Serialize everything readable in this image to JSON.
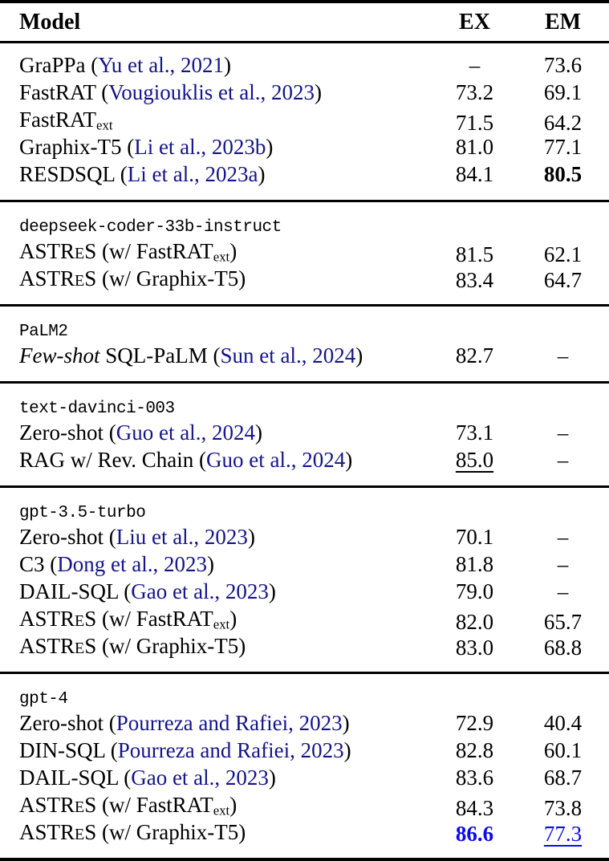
{
  "colors": {
    "text": "#000000",
    "cite": "#14148b",
    "highlight": "#0b0beb",
    "rule": "#000000",
    "background": "#ffffff"
  },
  "header": {
    "model": "Model",
    "ex": "EX",
    "em": "EM"
  },
  "sections": [
    {
      "rows": [
        {
          "model": [
            {
              "t": "GraPPa ("
            },
            {
              "t": "Yu et al., 2021",
              "s": "cite"
            },
            {
              "t": ")"
            }
          ],
          "ex": {
            "t": "–"
          },
          "em": {
            "t": "73.6"
          }
        },
        {
          "model": [
            {
              "t": "FastRAT ("
            },
            {
              "t": "Vougiouklis et al., 2023",
              "s": "cite"
            },
            {
              "t": ")"
            }
          ],
          "ex": {
            "t": "73.2"
          },
          "em": {
            "t": "69.1"
          }
        },
        {
          "model": [
            {
              "t": "FastRAT"
            },
            {
              "t": "ext",
              "s": "sub"
            }
          ],
          "ex": {
            "t": "71.5"
          },
          "em": {
            "t": "64.2"
          }
        },
        {
          "model": [
            {
              "t": "Graphix-T5 ("
            },
            {
              "t": "Li et al., 2023b",
              "s": "cite"
            },
            {
              "t": ")"
            }
          ],
          "ex": {
            "t": "81.0"
          },
          "em": {
            "t": "77.1"
          }
        },
        {
          "model": [
            {
              "t": "RESDSQL ("
            },
            {
              "t": "Li et al., 2023a",
              "s": "cite"
            },
            {
              "t": ")"
            }
          ],
          "ex": {
            "t": "84.1"
          },
          "em": {
            "t": "80.5",
            "s": "bold"
          }
        }
      ]
    },
    {
      "rows": [
        {
          "group": true,
          "model": [
            {
              "t": "deepseek-coder-33b-instruct",
              "s": "mono"
            }
          ],
          "ex": null,
          "em": null
        },
        {
          "model": [
            {
              "t": "ASTR"
            },
            {
              "t": "E",
              "s": "sc"
            },
            {
              "t": "S (w/ FastRAT"
            },
            {
              "t": "ext",
              "s": "sub"
            },
            {
              "t": ")"
            }
          ],
          "ex": {
            "t": "81.5"
          },
          "em": {
            "t": "62.1"
          }
        },
        {
          "model": [
            {
              "t": "ASTR"
            },
            {
              "t": "E",
              "s": "sc"
            },
            {
              "t": "S (w/ Graphix-T5)"
            }
          ],
          "ex": {
            "t": "83.4"
          },
          "em": {
            "t": "64.7"
          }
        }
      ]
    },
    {
      "rows": [
        {
          "group": true,
          "model": [
            {
              "t": "PaLM2",
              "s": "mono"
            }
          ],
          "ex": null,
          "em": null
        },
        {
          "model": [
            {
              "t": "Few-shot",
              "s": "italic"
            },
            {
              "t": " SQL-PaLM ("
            },
            {
              "t": "Sun et al., 2024",
              "s": "cite"
            },
            {
              "t": ")"
            }
          ],
          "ex": {
            "t": "82.7"
          },
          "em": {
            "t": "–"
          }
        }
      ]
    },
    {
      "rows": [
        {
          "group": true,
          "model": [
            {
              "t": "text-davinci-003",
              "s": "mono"
            }
          ],
          "ex": null,
          "em": null
        },
        {
          "model": [
            {
              "t": "Zero-shot ("
            },
            {
              "t": "Guo et al., 2024",
              "s": "cite"
            },
            {
              "t": ")"
            }
          ],
          "ex": {
            "t": "73.1"
          },
          "em": {
            "t": "–"
          }
        },
        {
          "model": [
            {
              "t": "RAG w/ Rev. Chain ("
            },
            {
              "t": "Guo et al., 2024",
              "s": "cite"
            },
            {
              "t": ")"
            }
          ],
          "ex": {
            "t": "85.0",
            "s": "underline"
          },
          "em": {
            "t": "–"
          }
        }
      ]
    },
    {
      "rows": [
        {
          "group": true,
          "model": [
            {
              "t": "gpt-3.5-turbo",
              "s": "mono"
            }
          ],
          "ex": null,
          "em": null
        },
        {
          "model": [
            {
              "t": "Zero-shot ("
            },
            {
              "t": "Liu et al., 2023",
              "s": "cite"
            },
            {
              "t": ")"
            }
          ],
          "ex": {
            "t": "70.1"
          },
          "em": {
            "t": "–"
          }
        },
        {
          "model": [
            {
              "t": "C3 ("
            },
            {
              "t": "Dong et al., 2023",
              "s": "cite"
            },
            {
              "t": ")"
            }
          ],
          "ex": {
            "t": "81.8"
          },
          "em": {
            "t": "–"
          }
        },
        {
          "model": [
            {
              "t": "DAIL-SQL ("
            },
            {
              "t": "Gao et al., 2023",
              "s": "cite"
            },
            {
              "t": ")"
            }
          ],
          "ex": {
            "t": "79.0"
          },
          "em": {
            "t": "–"
          }
        },
        {
          "model": [
            {
              "t": "ASTR"
            },
            {
              "t": "E",
              "s": "sc"
            },
            {
              "t": "S (w/ FastRAT"
            },
            {
              "t": "ext",
              "s": "sub"
            },
            {
              "t": ")"
            }
          ],
          "ex": {
            "t": "82.0"
          },
          "em": {
            "t": "65.7"
          }
        },
        {
          "model": [
            {
              "t": "ASTR"
            },
            {
              "t": "E",
              "s": "sc"
            },
            {
              "t": "S (w/ Graphix-T5)"
            }
          ],
          "ex": {
            "t": "83.0"
          },
          "em": {
            "t": "68.8"
          }
        }
      ]
    },
    {
      "rows": [
        {
          "group": true,
          "model": [
            {
              "t": "gpt-4",
              "s": "mono"
            }
          ],
          "ex": null,
          "em": null
        },
        {
          "model": [
            {
              "t": "Zero-shot ("
            },
            {
              "t": "Pourreza and Rafiei, 2023",
              "s": "cite"
            },
            {
              "t": ")"
            }
          ],
          "ex": {
            "t": "72.9"
          },
          "em": {
            "t": "40.4"
          }
        },
        {
          "model": [
            {
              "t": "DIN-SQL ("
            },
            {
              "t": "Pourreza and Rafiei, 2023",
              "s": "cite"
            },
            {
              "t": ")"
            }
          ],
          "ex": {
            "t": "82.8"
          },
          "em": {
            "t": "60.1"
          }
        },
        {
          "model": [
            {
              "t": "DAIL-SQL ("
            },
            {
              "t": "Gao et al., 2023",
              "s": "cite"
            },
            {
              "t": ")"
            }
          ],
          "ex": {
            "t": "83.6"
          },
          "em": {
            "t": "68.7"
          }
        },
        {
          "model": [
            {
              "t": "ASTR"
            },
            {
              "t": "E",
              "s": "sc"
            },
            {
              "t": "S (w/ FastRAT"
            },
            {
              "t": "ext",
              "s": "sub"
            },
            {
              "t": ")"
            }
          ],
          "ex": {
            "t": "84.3"
          },
          "em": {
            "t": "73.8"
          }
        },
        {
          "model": [
            {
              "t": "ASTR"
            },
            {
              "t": "E",
              "s": "sc"
            },
            {
              "t": "S (w/ Graphix-T5)"
            }
          ],
          "ex": {
            "t": "86.6",
            "s": "blue-bold"
          },
          "em": {
            "t": "77.3",
            "s": "blue-underline"
          }
        }
      ]
    }
  ]
}
